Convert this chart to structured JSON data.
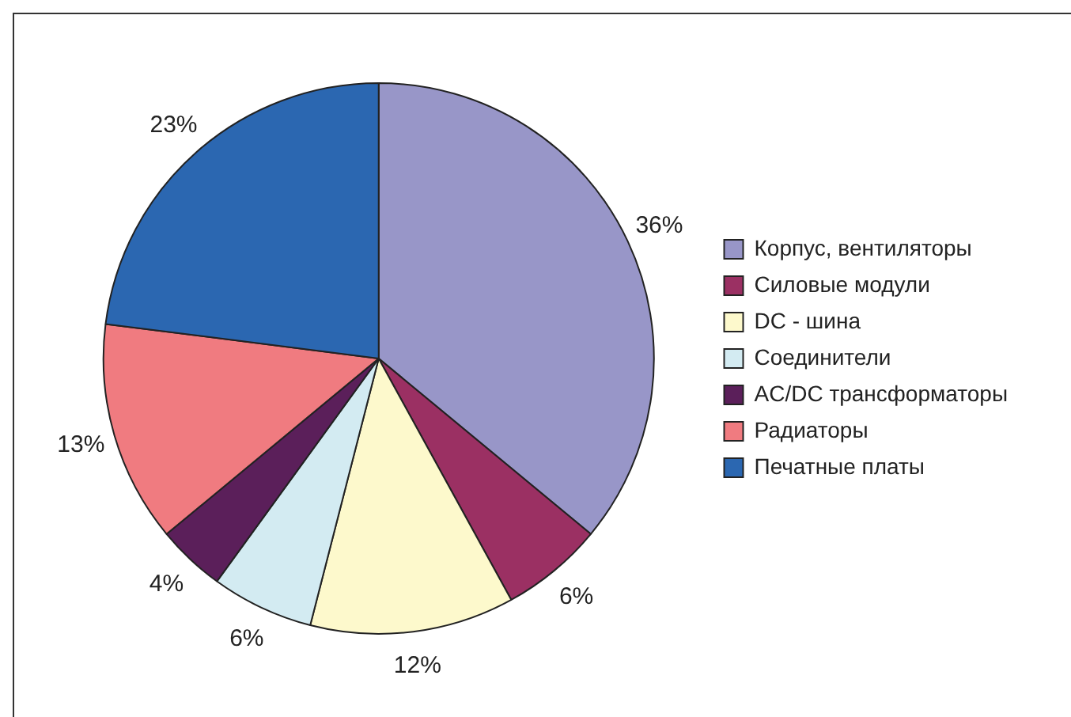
{
  "chart_data": {
    "type": "pie",
    "categories": [
      "Корпус, вентиляторы",
      "Силовые модули",
      "DC - шина",
      "Соединители",
      "AC/DC трансформаторы",
      "Радиаторы",
      "Печатные платы"
    ],
    "values": [
      36,
      6,
      12,
      6,
      4,
      13,
      23
    ],
    "colors": [
      "#9896c8",
      "#9b3063",
      "#fdf9cc",
      "#d3ebf2",
      "#5b1f5a",
      "#f07b80",
      "#2b67b1"
    ],
    "value_labels": [
      "36%",
      "6%",
      "12%",
      "6%",
      "4%",
      "13%",
      "23%"
    ],
    "legend": "right"
  }
}
